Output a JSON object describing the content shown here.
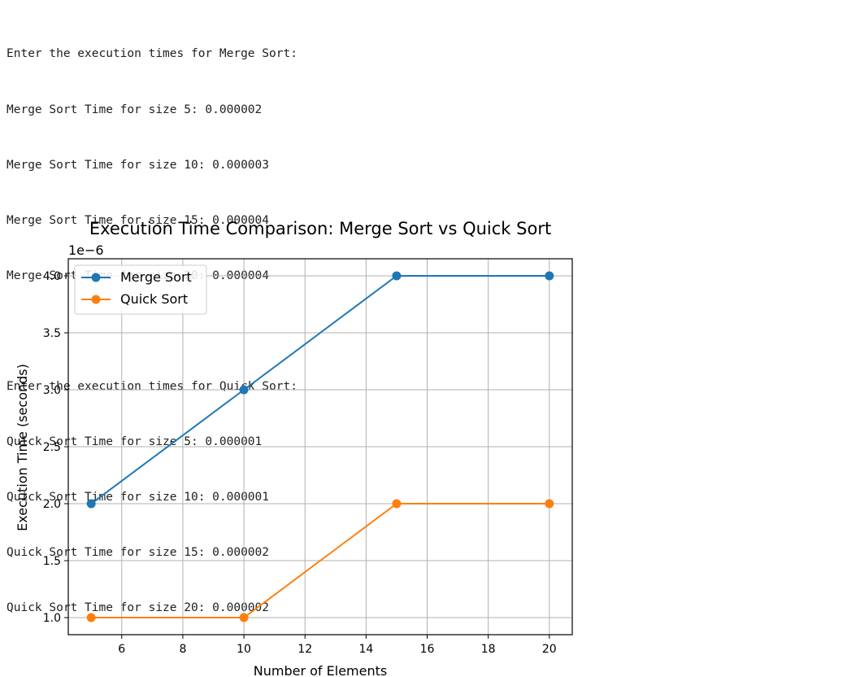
{
  "output": {
    "merge_header": "Enter the execution times for Merge Sort:",
    "merge_lines": [
      "Merge Sort Time for size 5: 0.000002",
      "Merge Sort Time for size 10: 0.000003",
      "Merge Sort Time for size 15: 0.000004",
      "Merge Sort Time for size 20: 0.000004"
    ],
    "quick_header": "Enter the execution times for Quick Sort:",
    "quick_lines": [
      "Quick Sort Time for size 5: 0.000001",
      "Quick Sort Time for size 10: 0.000001",
      "Quick Sort Time for size 15: 0.000002",
      "Quick Sort Time for size 20: 0.000002"
    ]
  },
  "chart_data": {
    "type": "line",
    "title": "Execution Time Comparison: Merge Sort vs Quick Sort",
    "xlabel": "Number of Elements",
    "ylabel": "Execution Time (seconds)",
    "y_offset_label": "1e−6",
    "x": [
      5,
      10,
      15,
      20
    ],
    "series": [
      {
        "name": "Merge Sort",
        "values": [
          2.0,
          3.0,
          4.0,
          4.0
        ],
        "color": "#1f77b4"
      },
      {
        "name": "Quick Sort",
        "values": [
          1.0,
          1.0,
          2.0,
          2.0
        ],
        "color": "#ff7f0e"
      }
    ],
    "xlim": [
      4.25,
      20.75
    ],
    "ylim": [
      0.85,
      4.15
    ],
    "xticks": [
      6,
      8,
      10,
      12,
      14,
      16,
      18,
      20
    ],
    "yticks": [
      1.0,
      1.5,
      2.0,
      2.5,
      3.0,
      3.5,
      4.0
    ],
    "grid": true,
    "legend_position": "top-left"
  }
}
